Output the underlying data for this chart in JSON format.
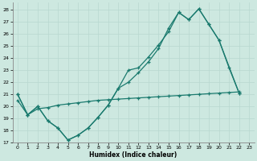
{
  "xlabel": "Humidex (Indice chaleur)",
  "xlim": [
    -0.5,
    23.5
  ],
  "ylim": [
    17,
    28.6
  ],
  "yticks": [
    17,
    18,
    19,
    20,
    21,
    22,
    23,
    24,
    25,
    26,
    27,
    28
  ],
  "xticks": [
    0,
    1,
    2,
    3,
    4,
    5,
    6,
    7,
    8,
    9,
    10,
    11,
    12,
    13,
    14,
    15,
    16,
    17,
    18,
    19,
    20,
    21,
    22,
    23
  ],
  "bg_color": "#cde8e0",
  "line_color": "#1a7a6e",
  "grid_color": "#b8d8d0",
  "line1_x": [
    0,
    1,
    2,
    3,
    4,
    5,
    6,
    7,
    8,
    9,
    10,
    11,
    12,
    13,
    14,
    15,
    16,
    17,
    18,
    19,
    20,
    21,
    22,
    23
  ],
  "line1_y": [
    21.0,
    19.3,
    20.0,
    18.8,
    18.2,
    17.2,
    17.6,
    18.2,
    19.1,
    20.1,
    21.5,
    23.0,
    23.2,
    24.1,
    25.1,
    26.2,
    27.8,
    27.2,
    28.1,
    26.8,
    25.5,
    23.2,
    21.1,
    null
  ],
  "line2_x": [
    0,
    1,
    2,
    3,
    4,
    5,
    6,
    7,
    8,
    9,
    10,
    11,
    12,
    13,
    14,
    15,
    16,
    17,
    18,
    19,
    20,
    22,
    23
  ],
  "line2_y": [
    21.0,
    19.3,
    20.0,
    18.8,
    18.2,
    17.2,
    17.6,
    18.2,
    19.1,
    20.1,
    21.5,
    22.0,
    22.8,
    23.7,
    24.8,
    26.5,
    27.8,
    27.2,
    28.1,
    26.8,
    25.5,
    21.1,
    null
  ],
  "line3_x": [
    0,
    1,
    2,
    3,
    4,
    5,
    6,
    7,
    8,
    9,
    10,
    11,
    12,
    13,
    14,
    15,
    16,
    17,
    18,
    19,
    20,
    21,
    22,
    23
  ],
  "line3_y": [
    20.5,
    19.3,
    19.8,
    19.9,
    20.1,
    20.2,
    20.3,
    20.4,
    20.5,
    20.55,
    20.6,
    20.65,
    20.7,
    20.75,
    20.8,
    20.85,
    20.9,
    20.95,
    21.0,
    21.05,
    21.1,
    21.15,
    21.2,
    null
  ]
}
